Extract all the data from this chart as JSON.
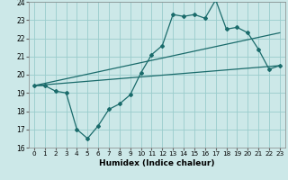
{
  "xlabel": "Humidex (Indice chaleur)",
  "xlim": [
    -0.5,
    23.5
  ],
  "ylim": [
    16,
    24
  ],
  "yticks": [
    16,
    17,
    18,
    19,
    20,
    21,
    22,
    23,
    24
  ],
  "xticks": [
    0,
    1,
    2,
    3,
    4,
    5,
    6,
    7,
    8,
    9,
    10,
    11,
    12,
    13,
    14,
    15,
    16,
    17,
    18,
    19,
    20,
    21,
    22,
    23
  ],
  "bg_color": "#cce8e8",
  "grid_color": "#99cccc",
  "line_color": "#1a6b6b",
  "line1_x": [
    0,
    1,
    2,
    3,
    4,
    5,
    6,
    7,
    8,
    9,
    10,
    11,
    12,
    13,
    14,
    15,
    16,
    17,
    18,
    19,
    20,
    21,
    22,
    23
  ],
  "line1_y": [
    19.4,
    19.4,
    19.1,
    19.0,
    17.0,
    16.5,
    17.2,
    18.1,
    18.4,
    18.9,
    20.1,
    21.1,
    21.6,
    23.3,
    23.2,
    23.3,
    23.1,
    24.1,
    22.5,
    22.6,
    22.3,
    21.4,
    20.3,
    20.5
  ],
  "line2_x": [
    0,
    23
  ],
  "line2_y": [
    19.4,
    20.5
  ],
  "line3_x": [
    0,
    23
  ],
  "line3_y": [
    19.4,
    22.3
  ]
}
